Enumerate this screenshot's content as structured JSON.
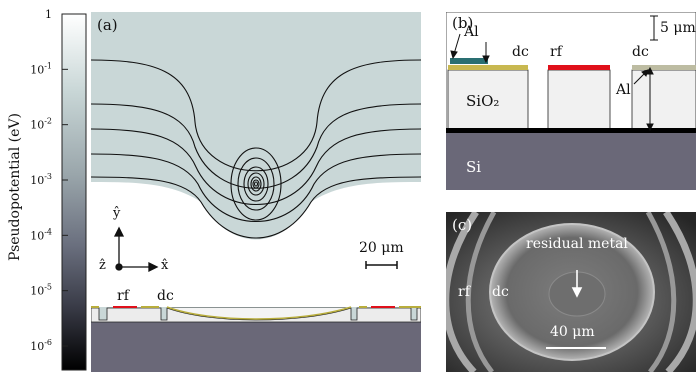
{
  "colorbar": {
    "axis_label": "Pseudopotential (eV)",
    "ticks": [
      {
        "base": "1",
        "exp": ""
      },
      {
        "base": "10",
        "exp": "-1"
      },
      {
        "base": "10",
        "exp": "-2"
      },
      {
        "base": "10",
        "exp": "-3"
      },
      {
        "base": "10",
        "exp": "-4"
      },
      {
        "base": "10",
        "exp": "-5"
      },
      {
        "base": "10",
        "exp": "-6"
      }
    ],
    "colors": {
      "top": "#ffffff",
      "mid": "#a9b8b9",
      "bottom": "#000000"
    }
  },
  "panel_a": {
    "label": "(a)",
    "scalebar": "20 μm",
    "axes": {
      "y": "ŷ",
      "z": "ẑ",
      "x": "x̂"
    },
    "electrodes": {
      "rf": "rf",
      "dc": "dc"
    }
  },
  "panel_b": {
    "label": "(b)",
    "scalebar": "5 μm",
    "labels": {
      "al_top": "Al",
      "al_right": "Al",
      "dc_left": "dc",
      "rf": "rf",
      "dc_right": "dc",
      "sio2": "SiO₂",
      "si": "Si"
    }
  },
  "panel_c": {
    "label": "(c)",
    "annotation": "residual metal",
    "scalebar": "40 μm",
    "labels": {
      "rf": "rf",
      "dc": "dc"
    }
  },
  "colors": {
    "rf": "#e0101a",
    "dc": "#b8ad3c",
    "al": "#2a6f72",
    "si": "#6a6878",
    "gold": "#c8b850",
    "dc_gray": "#bdbca2"
  }
}
